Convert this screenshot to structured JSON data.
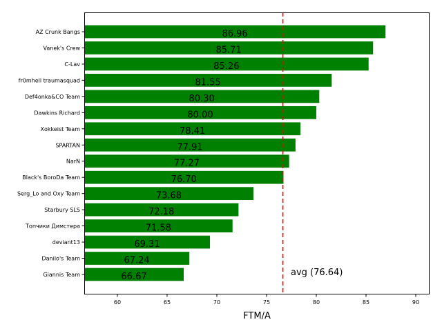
{
  "chart_data": {
    "type": "bar",
    "orientation": "horizontal",
    "categories": [
      "AZ Crunk Bangs",
      "Vanek's Crew",
      "C-Lav",
      "fr0mhell traumasquad",
      "Def4onka&CO Team",
      "Dawkins Richard",
      "Xokkeist Team",
      "SPARTAN",
      "NarN",
      "Black's BoroDa Team",
      "Serg_Lo and Oxy Team",
      "Starbury SLS",
      "Топчики Димстера",
      "deviant13",
      "Danilo's Team",
      "Giannis Team"
    ],
    "values": [
      86.96,
      85.71,
      85.26,
      81.55,
      80.3,
      80.0,
      78.41,
      77.91,
      77.27,
      76.7,
      73.68,
      72.18,
      71.58,
      69.31,
      67.24,
      66.67
    ],
    "value_labels": [
      "86.96",
      "85.71",
      "85.26",
      "81.55",
      "80.30",
      "80.00",
      "78.41",
      "77.91",
      "77.27",
      "76.70",
      "73.68",
      "72.18",
      "71.58",
      "69.31",
      "67.24",
      "66.67"
    ],
    "xlabel": "FTM/A",
    "xlim": [
      56.67,
      91.39
    ],
    "xticks": [
      "60",
      "65",
      "70",
      "75",
      "80",
      "85",
      "90"
    ],
    "grid": false,
    "bar_color": "#008000",
    "average": {
      "value": 76.64,
      "label": "avg (76.64)",
      "color": "#ff0000",
      "style": "dashed"
    }
  }
}
